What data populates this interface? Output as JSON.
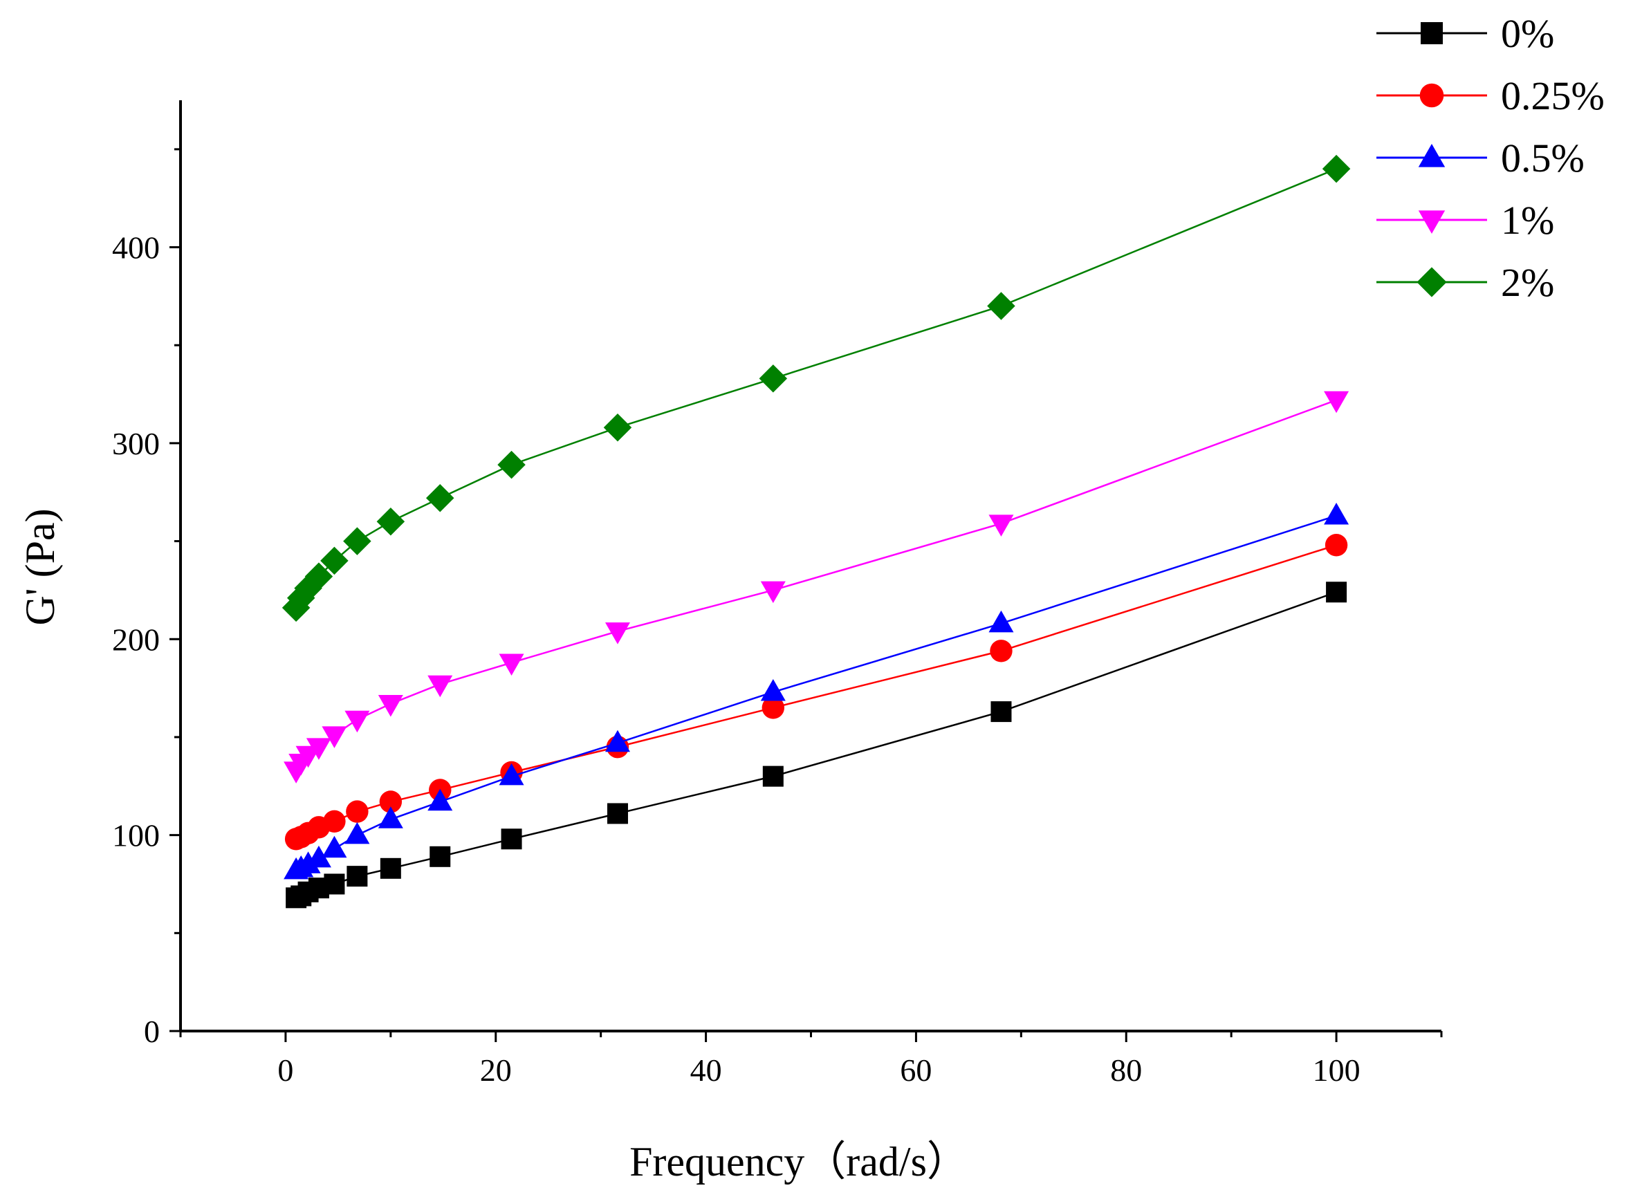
{
  "chart_data": {
    "type": "line",
    "title": "",
    "xlabel": "Frequency（rad/s）",
    "ylabel": "G' (Pa)",
    "xlim": [
      -10,
      110
    ],
    "ylim": [
      0,
      475
    ],
    "xticks": [
      "0",
      "20",
      "40",
      "60",
      "80",
      "100"
    ],
    "yticks": [
      "0",
      "100",
      "200",
      "300",
      "400"
    ],
    "grid": false,
    "legend_position": "top-right",
    "x": [
      1,
      1.47,
      2.15,
      3.16,
      4.64,
      6.81,
      10,
      14.7,
      21.5,
      31.6,
      46.4,
      68.1,
      100
    ],
    "series": [
      {
        "name": "0%",
        "color": "#000000",
        "marker": "square",
        "values": [
          68,
          69,
          71,
          73,
          75,
          79,
          83,
          89,
          98,
          111,
          130,
          163,
          224
        ]
      },
      {
        "name": "0.25%",
        "color": "#ff0000",
        "marker": "circle",
        "values": [
          98,
          99,
          101,
          104,
          107,
          112,
          117,
          123,
          132,
          145,
          165,
          194,
          248
        ]
      },
      {
        "name": "0.5%",
        "color": "#0000ff",
        "marker": "triangle-up",
        "values": [
          82,
          83,
          85,
          88,
          93,
          100,
          108,
          117,
          130,
          147,
          173,
          208,
          263
        ]
      },
      {
        "name": "1%",
        "color": "#ff00ff",
        "marker": "triangle-down",
        "values": [
          133,
          137,
          141,
          145,
          151,
          159,
          167,
          177,
          188,
          204,
          225,
          259,
          322
        ]
      },
      {
        "name": "2%",
        "color": "#008000",
        "marker": "diamond",
        "values": [
          216,
          221,
          226,
          232,
          240,
          250,
          260,
          272,
          289,
          308,
          333,
          370,
          440
        ]
      }
    ]
  }
}
